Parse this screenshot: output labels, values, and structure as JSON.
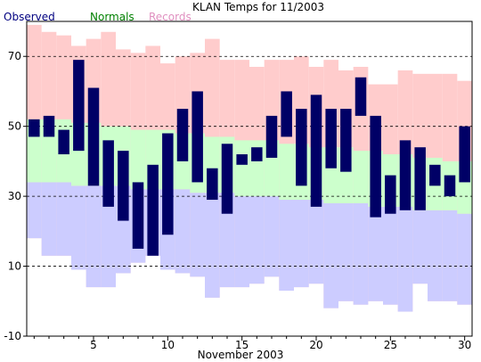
{
  "chart_data": {
    "type": "bar",
    "title": "KLAN Temps for 11/2003",
    "xlabel": "November 2003",
    "ylabel": "",
    "ylim": [
      -10,
      80
    ],
    "yticks": [
      -10,
      10,
      30,
      50,
      70
    ],
    "xticks": [
      5,
      10,
      15,
      20,
      25,
      30
    ],
    "days": [
      1,
      2,
      3,
      4,
      5,
      6,
      7,
      8,
      9,
      10,
      11,
      12,
      13,
      14,
      15,
      16,
      17,
      18,
      19,
      20,
      21,
      22,
      23,
      24,
      25,
      26,
      27,
      28,
      29,
      30
    ],
    "legend": [
      "Observed",
      "Normals",
      "Records"
    ],
    "grid": "dashed at 10, 30, 50, 70",
    "series": [
      {
        "name": "Observed",
        "color": "#000066",
        "high": [
          52,
          53,
          49,
          69,
          61,
          46,
          43,
          34,
          39,
          48,
          55,
          60,
          38,
          45,
          42,
          44,
          53,
          60,
          55,
          59,
          55,
          55,
          64,
          53,
          36,
          46,
          44,
          39,
          36,
          50
        ],
        "low": [
          47,
          47,
          42,
          43,
          33,
          27,
          23,
          15,
          13,
          19,
          40,
          34,
          29,
          25,
          39,
          40,
          41,
          47,
          33,
          27,
          38,
          37,
          53,
          24,
          25,
          26,
          26,
          33,
          30,
          34
        ]
      },
      {
        "name": "Normals",
        "color": "#ccffcc",
        "high": [
          52,
          52,
          52,
          51,
          51,
          50,
          50,
          49,
          49,
          49,
          48,
          48,
          47,
          47,
          46,
          46,
          46,
          45,
          45,
          44,
          44,
          44,
          43,
          43,
          42,
          42,
          41,
          41,
          40,
          40
        ],
        "low": [
          34,
          34,
          34,
          33,
          33,
          33,
          33,
          32,
          32,
          32,
          32,
          31,
          31,
          31,
          30,
          30,
          30,
          29,
          29,
          29,
          28,
          28,
          28,
          27,
          27,
          27,
          26,
          26,
          26,
          25
        ]
      },
      {
        "name": "Records",
        "color": "#ffcccc",
        "high": [
          79,
          77,
          76,
          73,
          75,
          77,
          72,
          71,
          73,
          68,
          70,
          71,
          75,
          69,
          69,
          67,
          69,
          69,
          70,
          67,
          69,
          66,
          67,
          62,
          62,
          66,
          65,
          65,
          65,
          63
        ],
        "low": [
          18,
          13,
          13,
          9,
          4,
          4,
          8,
          11,
          13,
          9,
          8,
          7,
          1,
          4,
          4,
          5,
          7,
          3,
          4,
          5,
          -2,
          0,
          -1,
          0,
          -1,
          -3,
          5,
          0,
          0,
          -1
        ]
      }
    ]
  }
}
